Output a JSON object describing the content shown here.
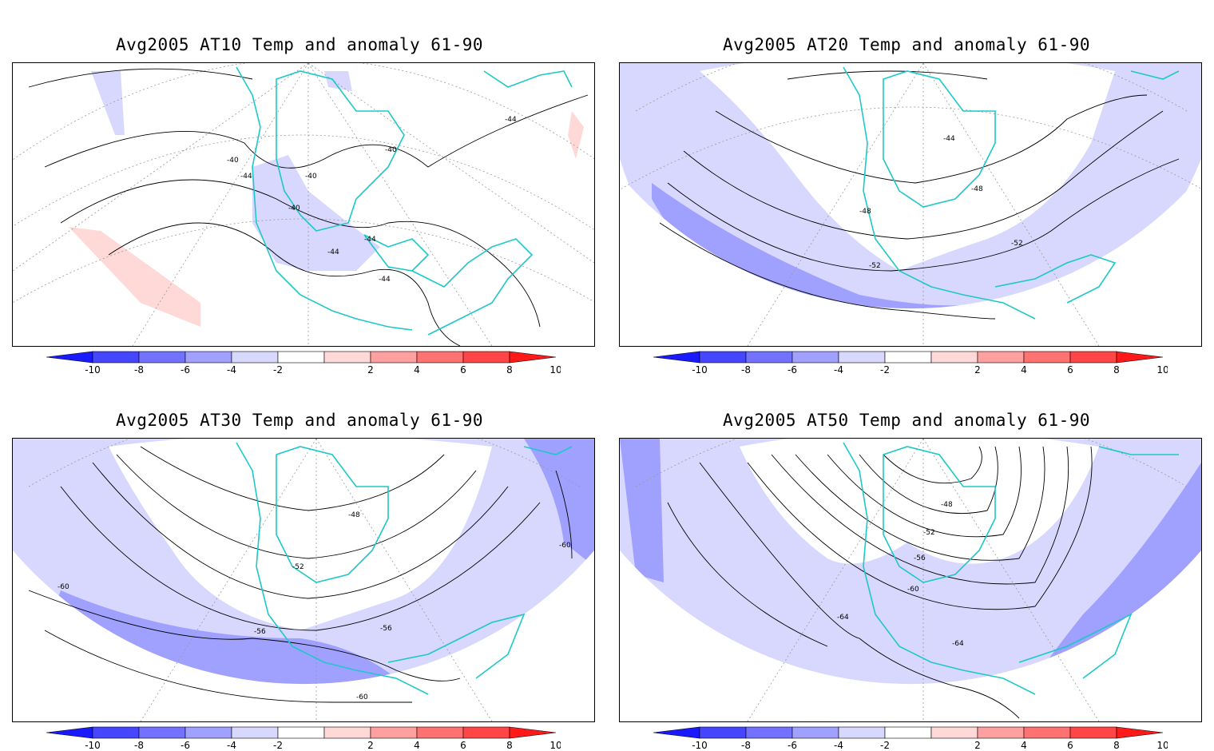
{
  "panels": [
    {
      "title": "Avg2005 AT10 Temp and anomaly 61-90",
      "contour_labels": [
        "-40",
        "-44",
        "-40",
        "-40",
        "-40",
        "-44",
        "-44",
        "-44",
        "-44"
      ]
    },
    {
      "title": "Avg2005 AT20 Temp and anomaly 61-90",
      "contour_labels": [
        "-44",
        "-48",
        "-48",
        "-52",
        "-52"
      ]
    },
    {
      "title": "Avg2005 AT30 Temp and anomaly 61-90",
      "contour_labels": [
        "-48",
        "-52",
        "-60",
        "-56",
        "-56",
        "-60",
        "-60"
      ]
    },
    {
      "title": "Avg2005 AT50 Temp and anomaly 61-90",
      "contour_labels": [
        "-48",
        "-52",
        "-56",
        "-60",
        "-64",
        "-64"
      ]
    }
  ],
  "colorbar": {
    "tick_labels": [
      "-10",
      "-8",
      "-6",
      "-4",
      "-2",
      "2",
      "4",
      "6",
      "8",
      "10"
    ],
    "colors": [
      "#1a1aff",
      "#4646ff",
      "#7272ff",
      "#a0a0ff",
      "#d8d8ff",
      "#ffffff",
      "#ffd8d8",
      "#ffa0a0",
      "#ff7272",
      "#ff4646",
      "#ff1a1a"
    ]
  },
  "colors": {
    "coastline": "#1ec8c8",
    "grid": "#999999",
    "contour": "#000000",
    "anomaly_light_blue": "#d8d8ff",
    "anomaly_blue": "#a0a0ff",
    "anomaly_light_red": "#ffd8d8"
  }
}
